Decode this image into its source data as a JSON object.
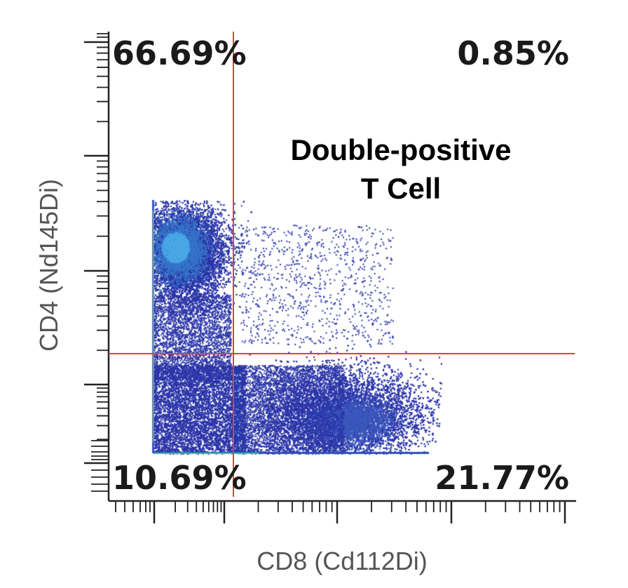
{
  "chart_data": {
    "type": "scatter",
    "style": "flow-cytometry density dot plot",
    "xlabel": "CD8 (Cd112Di)",
    "ylabel": "CD4 (Nd145Di)",
    "x_scale": "log",
    "y_scale": "log",
    "gate": {
      "type": "quadrant",
      "color": "#e0413a",
      "quadrants": {
        "top_left": "66.69%",
        "top_right": "0.85%",
        "bottom_left": "10.69%",
        "bottom_right": "21.77%"
      }
    },
    "annotation": [
      "Double-positive",
      "T Cell"
    ],
    "grid": false,
    "legend": "none",
    "colors": {
      "low_density": "#2b35a8",
      "high_density": "#4aa8e6",
      "axis": "#222222",
      "background": "#ffffff"
    }
  }
}
